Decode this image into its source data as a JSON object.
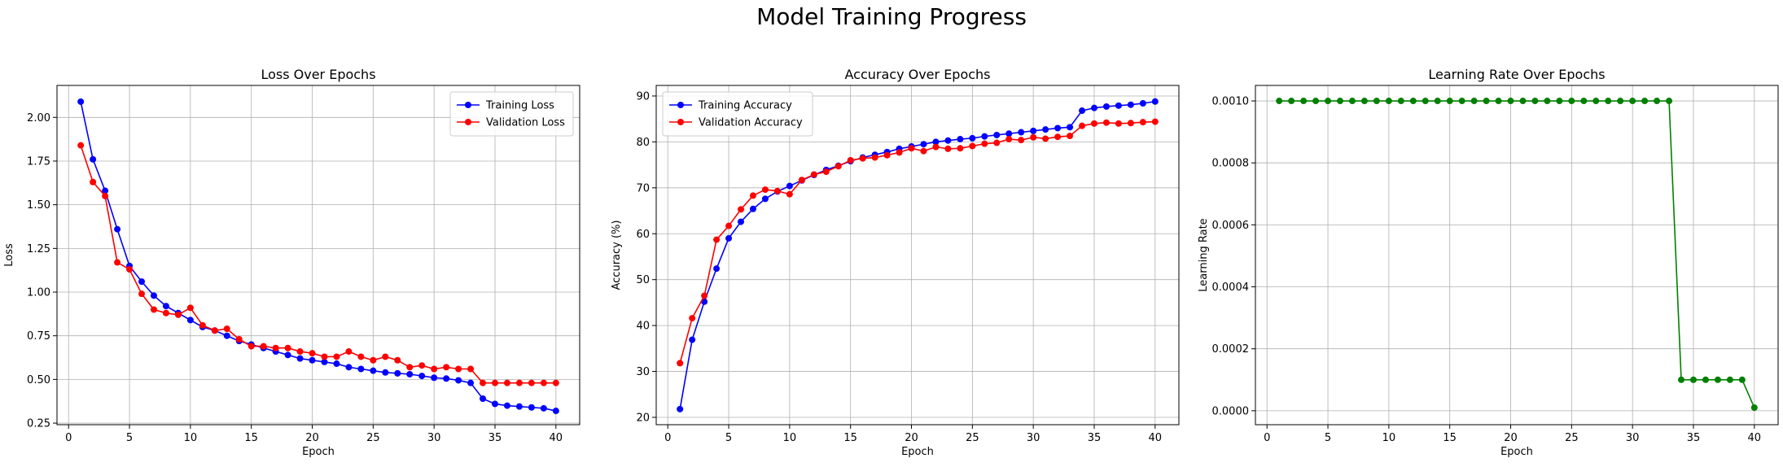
{
  "figure": {
    "title": "Model Training Progress"
  },
  "chart_data": [
    {
      "type": "line",
      "title": "Loss Over Epochs",
      "xlabel": "Epoch",
      "ylabel": "Loss",
      "xlim": [
        -0.95,
        41.95
      ],
      "ylim": [
        0.241,
        2.183
      ],
      "xticks": [
        0,
        5,
        10,
        15,
        20,
        25,
        30,
        35,
        40
      ],
      "yticks": [
        0.25,
        0.5,
        0.75,
        1.0,
        1.25,
        1.5,
        1.75,
        2.0
      ],
      "ytick_labels": [
        "0.25",
        "0.50",
        "0.75",
        "1.00",
        "1.25",
        "1.50",
        "1.75",
        "2.00"
      ],
      "grid": true,
      "legend": "upper right",
      "x": [
        1,
        2,
        3,
        4,
        5,
        6,
        7,
        8,
        9,
        10,
        11,
        12,
        13,
        14,
        15,
        16,
        17,
        18,
        19,
        20,
        21,
        22,
        23,
        24,
        25,
        26,
        27,
        28,
        29,
        30,
        31,
        32,
        33,
        34,
        35,
        36,
        37,
        38,
        39,
        40
      ],
      "series": [
        {
          "name": "Training Loss",
          "color": "#0000ff",
          "values": [
            2.09,
            1.76,
            1.58,
            1.36,
            1.15,
            1.06,
            0.98,
            0.92,
            0.88,
            0.84,
            0.8,
            0.78,
            0.75,
            0.72,
            0.7,
            0.68,
            0.66,
            0.64,
            0.62,
            0.61,
            0.6,
            0.59,
            0.57,
            0.56,
            0.55,
            0.54,
            0.535,
            0.53,
            0.52,
            0.51,
            0.505,
            0.495,
            0.48,
            0.39,
            0.36,
            0.35,
            0.345,
            0.34,
            0.335,
            0.32
          ]
        },
        {
          "name": "Validation Loss",
          "color": "#ff0000",
          "values": [
            1.84,
            1.63,
            1.55,
            1.17,
            1.13,
            0.99,
            0.9,
            0.88,
            0.87,
            0.91,
            0.81,
            0.78,
            0.79,
            0.73,
            0.69,
            0.69,
            0.68,
            0.68,
            0.66,
            0.65,
            0.63,
            0.63,
            0.66,
            0.63,
            0.61,
            0.63,
            0.61,
            0.57,
            0.58,
            0.56,
            0.57,
            0.56,
            0.56,
            0.48,
            0.48,
            0.48,
            0.48,
            0.48,
            0.48,
            0.48
          ]
        }
      ]
    },
    {
      "type": "line",
      "title": "Accuracy Over Epochs",
      "xlabel": "Epoch",
      "ylabel": "Accuracy (%)",
      "xlim": [
        -0.95,
        41.95
      ],
      "ylim": [
        18.4,
        92.3
      ],
      "xticks": [
        0,
        5,
        10,
        15,
        20,
        25,
        30,
        35,
        40
      ],
      "yticks": [
        20,
        30,
        40,
        50,
        60,
        70,
        80,
        90
      ],
      "ytick_labels": [
        "20",
        "30",
        "40",
        "50",
        "60",
        "70",
        "80",
        "90"
      ],
      "grid": true,
      "legend": "upper left",
      "x": [
        1,
        2,
        3,
        4,
        5,
        6,
        7,
        8,
        9,
        10,
        11,
        12,
        13,
        14,
        15,
        16,
        17,
        18,
        19,
        20,
        21,
        22,
        23,
        24,
        25,
        26,
        27,
        28,
        29,
        30,
        31,
        32,
        33,
        34,
        35,
        36,
        37,
        38,
        39,
        40
      ],
      "series": [
        {
          "name": "Training Accuracy",
          "color": "#0000ff",
          "values": [
            21.8,
            36.9,
            45.2,
            52.4,
            59.0,
            62.6,
            65.4,
            67.6,
            69.2,
            70.4,
            71.6,
            72.8,
            73.9,
            74.8,
            75.8,
            76.6,
            77.2,
            77.8,
            78.5,
            79.0,
            79.5,
            80.0,
            80.3,
            80.6,
            80.8,
            81.2,
            81.5,
            81.8,
            82.1,
            82.4,
            82.7,
            83.0,
            83.2,
            86.8,
            87.4,
            87.7,
            87.9,
            88.1,
            88.4,
            88.8
          ]
        },
        {
          "name": "Validation Accuracy",
          "color": "#ff0000",
          "values": [
            31.8,
            41.6,
            46.5,
            58.7,
            61.7,
            65.3,
            68.3,
            69.6,
            69.3,
            68.6,
            71.7,
            72.9,
            73.5,
            74.7,
            76.0,
            76.4,
            76.6,
            77.1,
            77.7,
            78.6,
            78.0,
            78.9,
            78.5,
            78.6,
            79.1,
            79.6,
            79.8,
            80.6,
            80.4,
            81.0,
            80.7,
            81.1,
            81.3,
            83.5,
            84.0,
            84.2,
            84.0,
            84.1,
            84.3,
            84.4
          ]
        }
      ]
    },
    {
      "type": "line",
      "title": "Learning Rate Over Epochs",
      "xlabel": "Epoch",
      "ylabel": "Learning Rate",
      "xlim": [
        -0.95,
        41.95
      ],
      "ylim": [
        -4.5e-05,
        0.00105
      ],
      "xticks": [
        0,
        5,
        10,
        15,
        20,
        25,
        30,
        35,
        40
      ],
      "yticks": [
        0,
        0.0002,
        0.0004,
        0.0006,
        0.0008,
        0.001
      ],
      "ytick_labels": [
        "0.0000",
        "0.0002",
        "0.0004",
        "0.0006",
        "0.0008",
        "0.0010"
      ],
      "grid": true,
      "legend": "none",
      "x": [
        1,
        2,
        3,
        4,
        5,
        6,
        7,
        8,
        9,
        10,
        11,
        12,
        13,
        14,
        15,
        16,
        17,
        18,
        19,
        20,
        21,
        22,
        23,
        24,
        25,
        26,
        27,
        28,
        29,
        30,
        31,
        32,
        33,
        34,
        35,
        36,
        37,
        38,
        39,
        40
      ],
      "series": [
        {
          "color": "#008000",
          "values": [
            0.001,
            0.001,
            0.001,
            0.001,
            0.001,
            0.001,
            0.001,
            0.001,
            0.001,
            0.001,
            0.001,
            0.001,
            0.001,
            0.001,
            0.001,
            0.001,
            0.001,
            0.001,
            0.001,
            0.001,
            0.001,
            0.001,
            0.001,
            0.001,
            0.001,
            0.001,
            0.001,
            0.001,
            0.001,
            0.001,
            0.001,
            0.001,
            0.001,
            0.0001,
            0.0001,
            0.0001,
            0.0001,
            0.0001,
            0.0001,
            1e-05
          ]
        }
      ]
    }
  ]
}
